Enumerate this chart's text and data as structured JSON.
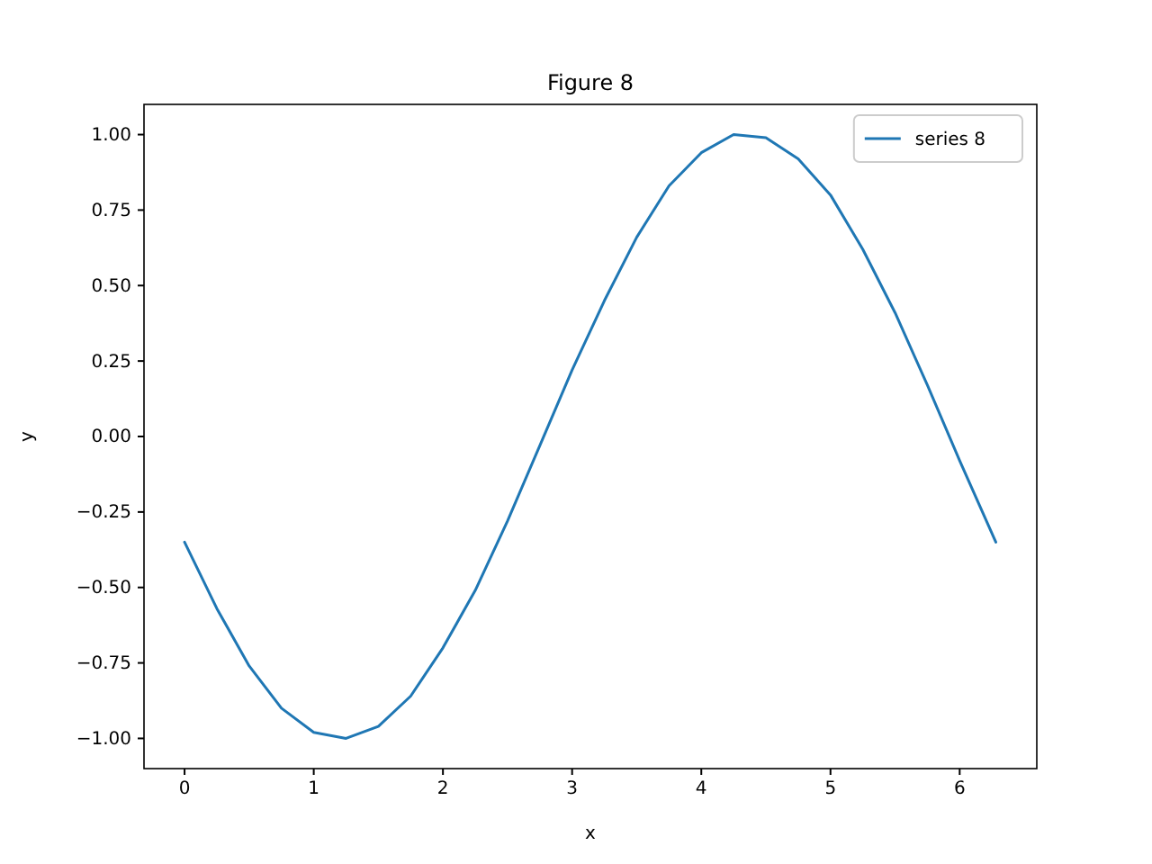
{
  "chart_data": {
    "type": "line",
    "title": "Figure 8",
    "xlabel": "x",
    "ylabel": "y",
    "xlim": [
      -0.314,
      6.597
    ],
    "ylim": [
      -1.1,
      1.1
    ],
    "xticks": [
      0,
      1,
      2,
      3,
      4,
      5,
      6
    ],
    "yticks": [
      {
        "value": -1,
        "label": "−1.00"
      },
      {
        "value": -0.75,
        "label": "−0.75"
      },
      {
        "value": -0.5,
        "label": "−0.50"
      },
      {
        "value": -0.25,
        "label": "−0.25"
      },
      {
        "value": 0,
        "label": "0.00"
      },
      {
        "value": 0.25,
        "label": "0.25"
      },
      {
        "value": 0.5,
        "label": "0.50"
      },
      {
        "value": 0.75,
        "label": "0.75"
      },
      {
        "value": 1,
        "label": "1.00"
      }
    ],
    "x": [
      0,
      0.25,
      0.5,
      0.75,
      1,
      1.25,
      1.5,
      1.75,
      2,
      2.25,
      2.5,
      2.75,
      3,
      3.25,
      3.5,
      3.75,
      4,
      4.25,
      4.5,
      4.75,
      5,
      5.25,
      5.5,
      5.75,
      6,
      6.28
    ],
    "series": [
      {
        "name": "series 8",
        "color": "#1f77b4",
        "values": [
          -0.35,
          -0.57,
          -0.76,
          -0.9,
          -0.98,
          -1,
          -0.96,
          -0.86,
          -0.7,
          -0.51,
          -0.28,
          -0.03,
          0.22,
          0.45,
          0.66,
          0.83,
          0.94,
          1,
          0.99,
          0.92,
          0.8,
          0.62,
          0.41,
          0.17,
          -0.08,
          -0.35
        ]
      }
    ],
    "legend": "top right",
    "grid": false,
    "line_style": "solid",
    "marker": "none"
  }
}
